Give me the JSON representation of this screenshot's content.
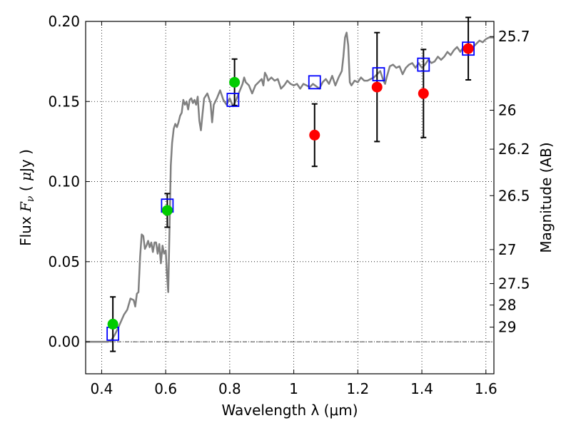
{
  "chart_data": {
    "type": "scatter",
    "title": "",
    "xlabel": "Wavelength  λ (μm)",
    "ylabel": {
      "prefix": "Flux ",
      "math_main": "F",
      "math_sub": "ν",
      "open": " ( ",
      "mu": "μ",
      "suffix": "Jy )"
    },
    "ylabel_right": "Magnitude (AB)",
    "xlim": [
      0.35,
      1.625
    ],
    "ylim": [
      -0.02,
      0.2
    ],
    "grid": true,
    "x_ticks": [
      {
        "value": 0.4,
        "label": "0.4"
      },
      {
        "value": 0.6,
        "label": "0.6"
      },
      {
        "value": 0.8,
        "label": "0.8"
      },
      {
        "value": 1.0,
        "label": "1"
      },
      {
        "value": 1.2,
        "label": "1.2"
      },
      {
        "value": 1.4,
        "label": "1.4"
      },
      {
        "value": 1.6,
        "label": "1.6"
      }
    ],
    "y_ticks": [
      {
        "value": 0.0,
        "label": "0.00"
      },
      {
        "value": 0.05,
        "label": "0.05"
      },
      {
        "value": 0.1,
        "label": "0.10"
      },
      {
        "value": 0.15,
        "label": "0.15"
      },
      {
        "value": 0.2,
        "label": "0.20"
      }
    ],
    "mag_ticks": [
      {
        "value": 25.7,
        "label": "25.7"
      },
      {
        "value": 26,
        "label": "26"
      },
      {
        "value": 26.2,
        "label": "26.2"
      },
      {
        "value": 26.5,
        "label": "26.5"
      },
      {
        "value": 27,
        "label": "27"
      },
      {
        "value": 27.5,
        "label": "27.5"
      },
      {
        "value": 28,
        "label": "28"
      },
      {
        "value": 29,
        "label": "29"
      }
    ],
    "series": [
      {
        "kind": "line",
        "color": "#808080",
        "points": [
          [
            0.35,
            0.0
          ],
          [
            0.42,
            0.0
          ],
          [
            0.43,
            0.001
          ],
          [
            0.44,
            0.004
          ],
          [
            0.45,
            0.008
          ],
          [
            0.47,
            0.017
          ],
          [
            0.48,
            0.02
          ],
          [
            0.49,
            0.027
          ],
          [
            0.5,
            0.026
          ],
          [
            0.505,
            0.022
          ],
          [
            0.51,
            0.03
          ],
          [
            0.515,
            0.031
          ],
          [
            0.52,
            0.053
          ],
          [
            0.525,
            0.067
          ],
          [
            0.53,
            0.066
          ],
          [
            0.535,
            0.058
          ],
          [
            0.54,
            0.06
          ],
          [
            0.545,
            0.063
          ],
          [
            0.55,
            0.059
          ],
          [
            0.555,
            0.062
          ],
          [
            0.56,
            0.056
          ],
          [
            0.565,
            0.062
          ],
          [
            0.57,
            0.062
          ],
          [
            0.575,
            0.055
          ],
          [
            0.58,
            0.061
          ],
          [
            0.585,
            0.049
          ],
          [
            0.59,
            0.06
          ],
          [
            0.595,
            0.055
          ],
          [
            0.6,
            0.057
          ],
          [
            0.604,
            0.042
          ],
          [
            0.608,
            0.031
          ],
          [
            0.612,
            0.07
          ],
          [
            0.616,
            0.11
          ],
          [
            0.62,
            0.124
          ],
          [
            0.625,
            0.133
          ],
          [
            0.63,
            0.136
          ],
          [
            0.635,
            0.134
          ],
          [
            0.64,
            0.137
          ],
          [
            0.645,
            0.141
          ],
          [
            0.65,
            0.143
          ],
          [
            0.655,
            0.151
          ],
          [
            0.66,
            0.148
          ],
          [
            0.665,
            0.15
          ],
          [
            0.67,
            0.145
          ],
          [
            0.675,
            0.151
          ],
          [
            0.68,
            0.152
          ],
          [
            0.685,
            0.149
          ],
          [
            0.69,
            0.151
          ],
          [
            0.695,
            0.148
          ],
          [
            0.7,
            0.153
          ],
          [
            0.705,
            0.138
          ],
          [
            0.71,
            0.132
          ],
          [
            0.715,
            0.142
          ],
          [
            0.72,
            0.152
          ],
          [
            0.73,
            0.155
          ],
          [
            0.74,
            0.149
          ],
          [
            0.745,
            0.137
          ],
          [
            0.75,
            0.148
          ],
          [
            0.76,
            0.152
          ],
          [
            0.77,
            0.157
          ],
          [
            0.78,
            0.151
          ],
          [
            0.79,
            0.148
          ],
          [
            0.8,
            0.152
          ],
          [
            0.81,
            0.147
          ],
          [
            0.82,
            0.151
          ],
          [
            0.83,
            0.156
          ],
          [
            0.84,
            0.161
          ],
          [
            0.845,
            0.165
          ],
          [
            0.85,
            0.162
          ],
          [
            0.86,
            0.16
          ],
          [
            0.87,
            0.155
          ],
          [
            0.88,
            0.16
          ],
          [
            0.89,
            0.162
          ],
          [
            0.9,
            0.164
          ],
          [
            0.905,
            0.16
          ],
          [
            0.91,
            0.168
          ],
          [
            0.915,
            0.166
          ],
          [
            0.92,
            0.163
          ],
          [
            0.93,
            0.165
          ],
          [
            0.94,
            0.163
          ],
          [
            0.95,
            0.164
          ],
          [
            0.96,
            0.158
          ],
          [
            0.97,
            0.16
          ],
          [
            0.98,
            0.163
          ],
          [
            0.99,
            0.161
          ],
          [
            1.0,
            0.16
          ],
          [
            1.01,
            0.161
          ],
          [
            1.02,
            0.158
          ],
          [
            1.03,
            0.161
          ],
          [
            1.04,
            0.16
          ],
          [
            1.05,
            0.159
          ],
          [
            1.06,
            0.161
          ],
          [
            1.08,
            0.158
          ],
          [
            1.09,
            0.162
          ],
          [
            1.1,
            0.164
          ],
          [
            1.11,
            0.161
          ],
          [
            1.12,
            0.166
          ],
          [
            1.13,
            0.16
          ],
          [
            1.14,
            0.165
          ],
          [
            1.15,
            0.169
          ],
          [
            1.155,
            0.178
          ],
          [
            1.16,
            0.19
          ],
          [
            1.165,
            0.193
          ],
          [
            1.17,
            0.185
          ],
          [
            1.175,
            0.162
          ],
          [
            1.18,
            0.16
          ],
          [
            1.19,
            0.163
          ],
          [
            1.2,
            0.162
          ],
          [
            1.21,
            0.165
          ],
          [
            1.22,
            0.163
          ],
          [
            1.23,
            0.163
          ],
          [
            1.24,
            0.164
          ],
          [
            1.25,
            0.165
          ],
          [
            1.26,
            0.167
          ],
          [
            1.27,
            0.169
          ],
          [
            1.28,
            0.163
          ],
          [
            1.285,
            0.161
          ],
          [
            1.29,
            0.165
          ],
          [
            1.3,
            0.172
          ],
          [
            1.31,
            0.173
          ],
          [
            1.32,
            0.171
          ],
          [
            1.33,
            0.172
          ],
          [
            1.34,
            0.167
          ],
          [
            1.35,
            0.171
          ],
          [
            1.36,
            0.173
          ],
          [
            1.37,
            0.174
          ],
          [
            1.38,
            0.171
          ],
          [
            1.39,
            0.174
          ],
          [
            1.4,
            0.171
          ],
          [
            1.41,
            0.173
          ],
          [
            1.42,
            0.176
          ],
          [
            1.43,
            0.174
          ],
          [
            1.44,
            0.175
          ],
          [
            1.45,
            0.178
          ],
          [
            1.46,
            0.176
          ],
          [
            1.47,
            0.178
          ],
          [
            1.48,
            0.181
          ],
          [
            1.49,
            0.179
          ],
          [
            1.5,
            0.182
          ],
          [
            1.51,
            0.184
          ],
          [
            1.52,
            0.181
          ],
          [
            1.53,
            0.184
          ],
          [
            1.54,
            0.183
          ],
          [
            1.55,
            0.185
          ],
          [
            1.56,
            0.184
          ],
          [
            1.57,
            0.186
          ],
          [
            1.58,
            0.188
          ],
          [
            1.59,
            0.187
          ],
          [
            1.6,
            0.189
          ],
          [
            1.61,
            0.19
          ],
          [
            1.625,
            0.19
          ]
        ]
      },
      {
        "kind": "box",
        "color": "#0000ff",
        "points": [
          [
            0.435,
            0.005
          ],
          [
            0.605,
            0.085
          ],
          [
            0.81,
            0.151
          ],
          [
            1.065,
            0.162
          ],
          [
            1.265,
            0.167
          ],
          [
            1.405,
            0.173
          ],
          [
            1.545,
            0.183
          ]
        ]
      },
      {
        "kind": "point",
        "color": "#00cc00",
        "points": [
          {
            "x": 0.435,
            "y": 0.011,
            "err": 0.017
          },
          {
            "x": 0.605,
            "y": 0.082,
            "err": 0.0105
          },
          {
            "x": 0.815,
            "y": 0.162,
            "err": 0.0145
          }
        ]
      },
      {
        "kind": "point",
        "color": "#ff0000",
        "points": [
          {
            "x": 1.065,
            "y": 0.129,
            "err": 0.0195
          },
          {
            "x": 1.26,
            "y": 0.159,
            "err": 0.034
          },
          {
            "x": 1.405,
            "y": 0.155,
            "err": 0.0275
          },
          {
            "x": 1.545,
            "y": 0.183,
            "err": 0.0195
          }
        ]
      }
    ]
  }
}
